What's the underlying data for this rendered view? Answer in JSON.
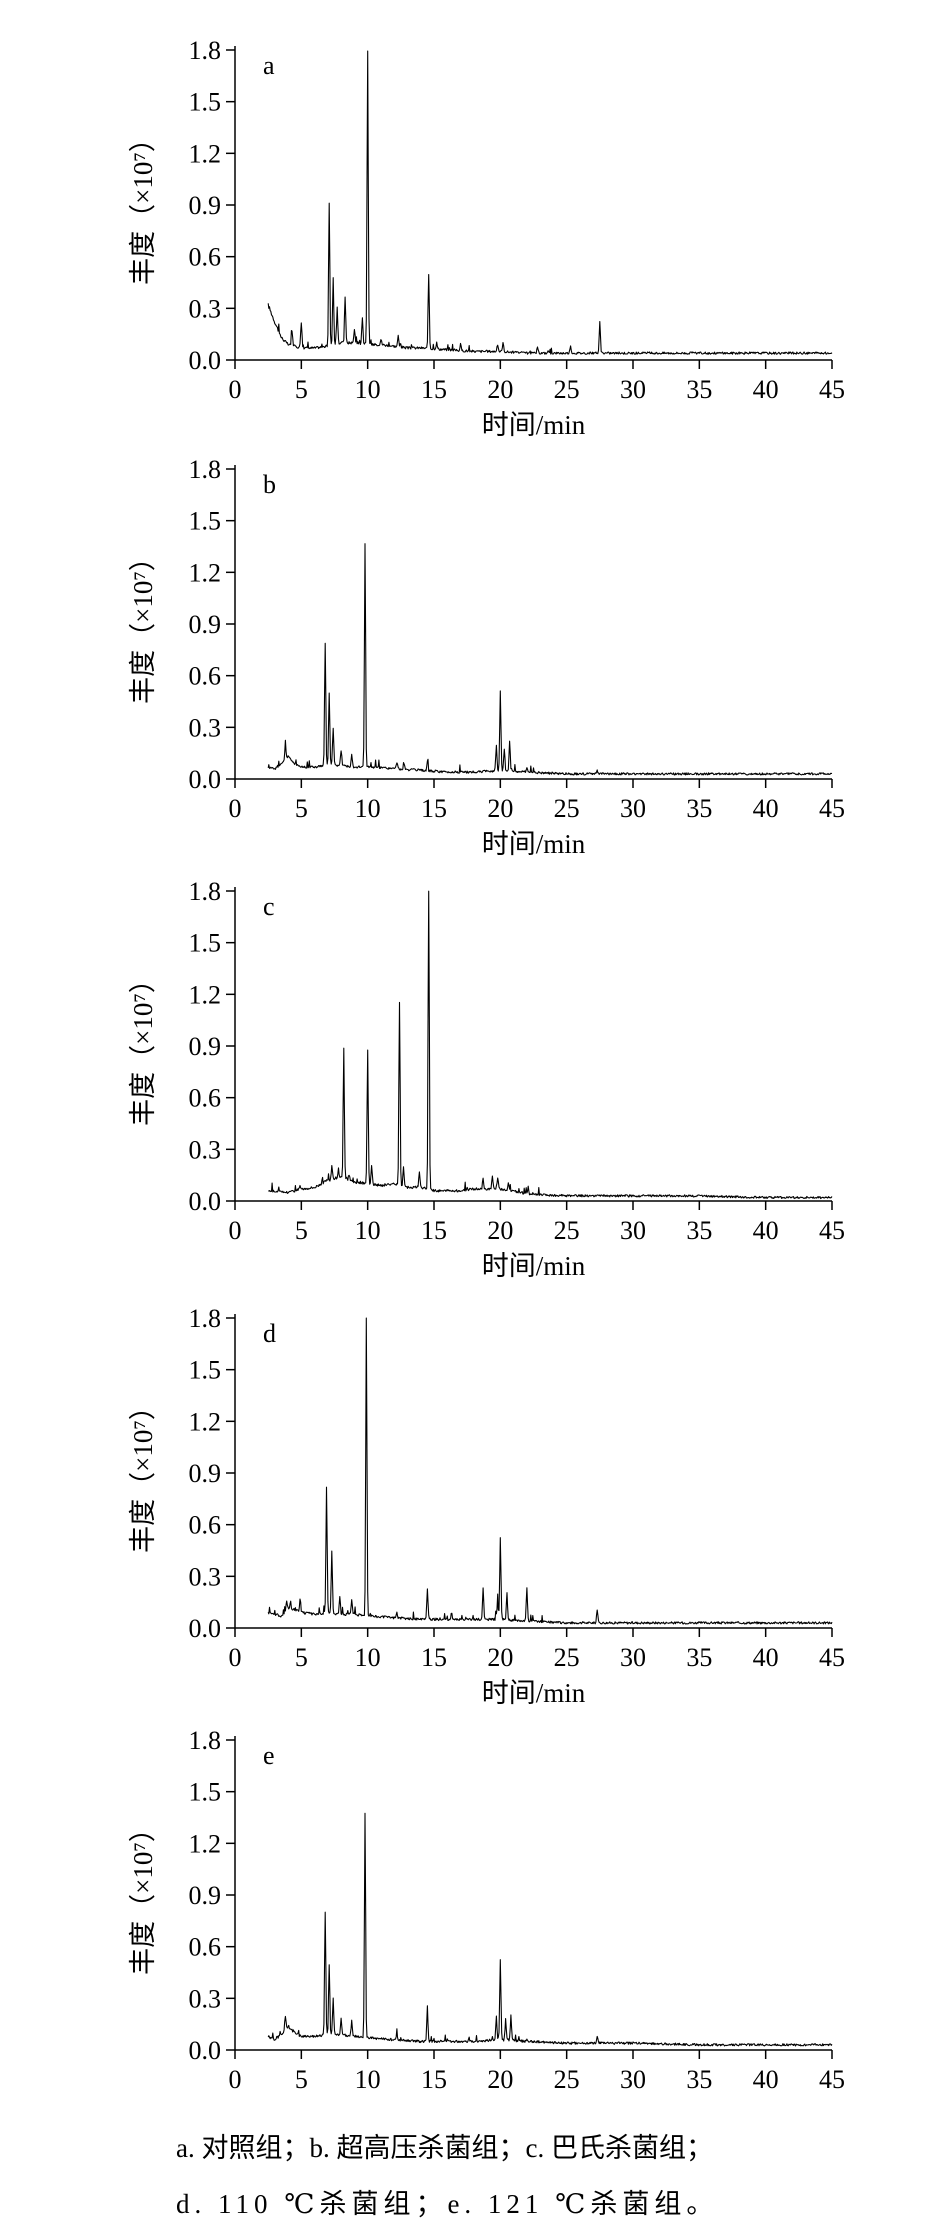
{
  "chart_data": [
    {
      "type": "line",
      "panel_label": "a",
      "xlabel": "时间/min",
      "ylabel": "丰度（×10⁷）",
      "xlim": [
        0,
        45
      ],
      "ylim": [
        0,
        1.8
      ],
      "xticks": [
        "0",
        "5",
        "10",
        "15",
        "20",
        "25",
        "30",
        "35",
        "40",
        "45"
      ],
      "yticks": [
        "0.0",
        "0.3",
        "0.6",
        "0.9",
        "1.2",
        "1.5",
        "1.8"
      ],
      "baseline": [
        [
          2.5,
          0.32
        ],
        [
          3.0,
          0.22
        ],
        [
          3.5,
          0.13
        ],
        [
          4.0,
          0.09
        ],
        [
          5.0,
          0.07
        ],
        [
          6.0,
          0.07
        ],
        [
          7.0,
          0.08
        ],
        [
          8.0,
          0.1
        ],
        [
          9.0,
          0.1
        ],
        [
          10.0,
          0.09
        ],
        [
          11.0,
          0.09
        ],
        [
          12.0,
          0.08
        ],
        [
          13.0,
          0.07
        ],
        [
          14.0,
          0.07
        ],
        [
          16.0,
          0.06
        ],
        [
          18.0,
          0.05
        ],
        [
          20.0,
          0.05
        ],
        [
          22.0,
          0.04
        ],
        [
          25.0,
          0.04
        ],
        [
          30.0,
          0.04
        ],
        [
          35.0,
          0.04
        ],
        [
          40.0,
          0.04
        ],
        [
          45.0,
          0.04
        ]
      ],
      "peaks": [
        [
          4.3,
          0.17
        ],
        [
          5.0,
          0.22
        ],
        [
          7.1,
          0.91
        ],
        [
          7.4,
          0.48
        ],
        [
          7.7,
          0.3
        ],
        [
          8.3,
          0.37
        ],
        [
          9.0,
          0.18
        ],
        [
          9.6,
          0.25
        ],
        [
          10.0,
          1.8
        ],
        [
          11.0,
          0.12
        ],
        [
          12.3,
          0.14
        ],
        [
          14.6,
          0.49
        ],
        [
          15.2,
          0.1
        ],
        [
          17.0,
          0.09
        ],
        [
          19.8,
          0.09
        ],
        [
          20.2,
          0.1
        ],
        [
          22.8,
          0.07
        ],
        [
          25.3,
          0.08
        ],
        [
          27.5,
          0.22
        ]
      ]
    },
    {
      "type": "line",
      "panel_label": "b",
      "xlabel": "时间/min",
      "ylabel": "丰度（×10⁷）",
      "xlim": [
        0,
        45
      ],
      "ylim": [
        0,
        1.8
      ],
      "xticks": [
        "0",
        "5",
        "10",
        "15",
        "20",
        "25",
        "30",
        "35",
        "40",
        "45"
      ],
      "yticks": [
        "0.0",
        "0.3",
        "0.6",
        "0.9",
        "1.2",
        "1.5",
        "1.8"
      ],
      "baseline": [
        [
          2.5,
          0.07
        ],
        [
          3.0,
          0.06
        ],
        [
          3.5,
          0.09
        ],
        [
          4.0,
          0.13
        ],
        [
          4.5,
          0.09
        ],
        [
          5.0,
          0.07
        ],
        [
          6.0,
          0.07
        ],
        [
          7.0,
          0.08
        ],
        [
          8.0,
          0.08
        ],
        [
          9.0,
          0.07
        ],
        [
          10.0,
          0.07
        ],
        [
          12.0,
          0.06
        ],
        [
          14.0,
          0.05
        ],
        [
          16.0,
          0.04
        ],
        [
          18.0,
          0.04
        ],
        [
          20.0,
          0.05
        ],
        [
          22.0,
          0.04
        ],
        [
          25.0,
          0.03
        ],
        [
          30.0,
          0.03
        ],
        [
          35.0,
          0.03
        ],
        [
          40.0,
          0.03
        ],
        [
          45.0,
          0.03
        ]
      ],
      "peaks": [
        [
          3.8,
          0.2
        ],
        [
          6.8,
          0.79
        ],
        [
          7.1,
          0.5
        ],
        [
          7.4,
          0.3
        ],
        [
          8.0,
          0.17
        ],
        [
          8.8,
          0.15
        ],
        [
          9.8,
          1.37
        ],
        [
          12.2,
          0.1
        ],
        [
          14.5,
          0.1
        ],
        [
          19.7,
          0.2
        ],
        [
          20.0,
          0.51
        ],
        [
          20.3,
          0.18
        ],
        [
          20.7,
          0.22
        ],
        [
          22.0,
          0.06
        ],
        [
          27.3,
          0.05
        ]
      ]
    },
    {
      "type": "line",
      "panel_label": "c",
      "xlabel": "时间/min",
      "ylabel": "丰度（×10⁷）",
      "xlim": [
        0,
        45
      ],
      "ylim": [
        0,
        1.8
      ],
      "xticks": [
        "0",
        "5",
        "10",
        "15",
        "20",
        "25",
        "30",
        "35",
        "40",
        "45"
      ],
      "yticks": [
        "0.0",
        "0.3",
        "0.6",
        "0.9",
        "1.2",
        "1.5",
        "1.8"
      ],
      "baseline": [
        [
          2.5,
          0.06
        ],
        [
          4.0,
          0.05
        ],
        [
          5.0,
          0.07
        ],
        [
          6.0,
          0.08
        ],
        [
          7.0,
          0.12
        ],
        [
          8.0,
          0.14
        ],
        [
          9.0,
          0.11
        ],
        [
          10.0,
          0.1
        ],
        [
          11.0,
          0.09
        ],
        [
          12.0,
          0.1
        ],
        [
          13.0,
          0.08
        ],
        [
          14.0,
          0.08
        ],
        [
          15.0,
          0.06
        ],
        [
          17.0,
          0.06
        ],
        [
          18.0,
          0.07
        ],
        [
          20.0,
          0.07
        ],
        [
          22.0,
          0.04
        ],
        [
          25.0,
          0.03
        ],
        [
          30.0,
          0.03
        ],
        [
          35.0,
          0.03
        ],
        [
          40.0,
          0.02
        ],
        [
          45.0,
          0.02
        ]
      ],
      "peaks": [
        [
          4.9,
          0.09
        ],
        [
          7.3,
          0.2
        ],
        [
          7.8,
          0.18
        ],
        [
          8.2,
          0.89
        ],
        [
          8.6,
          0.15
        ],
        [
          10.0,
          0.87
        ],
        [
          10.3,
          0.2
        ],
        [
          12.4,
          1.15
        ],
        [
          12.7,
          0.2
        ],
        [
          13.9,
          0.17
        ],
        [
          14.6,
          1.8
        ],
        [
          18.7,
          0.13
        ],
        [
          19.4,
          0.15
        ],
        [
          19.8,
          0.14
        ],
        [
          20.6,
          0.1
        ],
        [
          22.1,
          0.08
        ]
      ]
    },
    {
      "type": "line",
      "panel_label": "d",
      "xlabel": "时间/min",
      "ylabel": "丰度（×10⁷）",
      "xlim": [
        0,
        45
      ],
      "ylim": [
        0,
        1.8
      ],
      "xticks": [
        "0",
        "5",
        "10",
        "15",
        "20",
        "25",
        "30",
        "35",
        "40",
        "45"
      ],
      "yticks": [
        "0.0",
        "0.3",
        "0.6",
        "0.9",
        "1.2",
        "1.5",
        "1.8"
      ],
      "baseline": [
        [
          2.5,
          0.09
        ],
        [
          3.0,
          0.08
        ],
        [
          3.5,
          0.07
        ],
        [
          4.0,
          0.12
        ],
        [
          5.0,
          0.09
        ],
        [
          6.0,
          0.08
        ],
        [
          7.0,
          0.09
        ],
        [
          8.0,
          0.08
        ],
        [
          9.0,
          0.08
        ],
        [
          10.0,
          0.07
        ],
        [
          12.0,
          0.06
        ],
        [
          14.0,
          0.05
        ],
        [
          16.0,
          0.05
        ],
        [
          18.0,
          0.05
        ],
        [
          20.0,
          0.05
        ],
        [
          22.0,
          0.04
        ],
        [
          25.0,
          0.03
        ],
        [
          30.0,
          0.03
        ],
        [
          35.0,
          0.03
        ],
        [
          40.0,
          0.03
        ],
        [
          45.0,
          0.03
        ]
      ],
      "peaks": [
        [
          3.9,
          0.15
        ],
        [
          4.9,
          0.15
        ],
        [
          6.9,
          0.81
        ],
        [
          7.3,
          0.45
        ],
        [
          7.9,
          0.18
        ],
        [
          8.8,
          0.16
        ],
        [
          9.9,
          1.8
        ],
        [
          12.2,
          0.09
        ],
        [
          14.5,
          0.23
        ],
        [
          18.7,
          0.23
        ],
        [
          19.8,
          0.16
        ],
        [
          20.0,
          0.52
        ],
        [
          20.5,
          0.2
        ],
        [
          22.0,
          0.24
        ],
        [
          27.3,
          0.11
        ]
      ]
    },
    {
      "type": "line",
      "panel_label": "e",
      "xlabel": "时间/min",
      "ylabel": "丰度（×10⁷）",
      "xlim": [
        0,
        45
      ],
      "ylim": [
        0,
        1.8
      ],
      "xticks": [
        "0",
        "5",
        "10",
        "15",
        "20",
        "25",
        "30",
        "35",
        "40",
        "45"
      ],
      "yticks": [
        "0.0",
        "0.3",
        "0.6",
        "0.9",
        "1.2",
        "1.5",
        "1.8"
      ],
      "baseline": [
        [
          2.5,
          0.07
        ],
        [
          3.0,
          0.06
        ],
        [
          3.5,
          0.09
        ],
        [
          4.0,
          0.14
        ],
        [
          4.5,
          0.1
        ],
        [
          5.0,
          0.08
        ],
        [
          6.0,
          0.08
        ],
        [
          7.0,
          0.09
        ],
        [
          8.0,
          0.09
        ],
        [
          9.0,
          0.08
        ],
        [
          10.0,
          0.07
        ],
        [
          12.0,
          0.06
        ],
        [
          14.0,
          0.05
        ],
        [
          16.0,
          0.05
        ],
        [
          18.0,
          0.05
        ],
        [
          20.0,
          0.06
        ],
        [
          22.0,
          0.05
        ],
        [
          25.0,
          0.04
        ],
        [
          30.0,
          0.04
        ],
        [
          35.0,
          0.03
        ],
        [
          40.0,
          0.03
        ],
        [
          45.0,
          0.03
        ]
      ],
      "peaks": [
        [
          3.8,
          0.2
        ],
        [
          6.8,
          0.8
        ],
        [
          7.1,
          0.5
        ],
        [
          7.4,
          0.3
        ],
        [
          8.0,
          0.18
        ],
        [
          8.8,
          0.17
        ],
        [
          9.8,
          1.38
        ],
        [
          12.2,
          0.1
        ],
        [
          14.5,
          0.25
        ],
        [
          19.7,
          0.2
        ],
        [
          20.0,
          0.52
        ],
        [
          20.4,
          0.18
        ],
        [
          20.8,
          0.2
        ],
        [
          22.0,
          0.07
        ],
        [
          27.3,
          0.08
        ]
      ]
    }
  ],
  "caption": {
    "line1": "a. 对照组；b. 超高压杀菌组；c. 巴氏杀菌组；",
    "line2": "d. 110 ℃杀菌组；e. 121 ℃杀菌组。"
  }
}
